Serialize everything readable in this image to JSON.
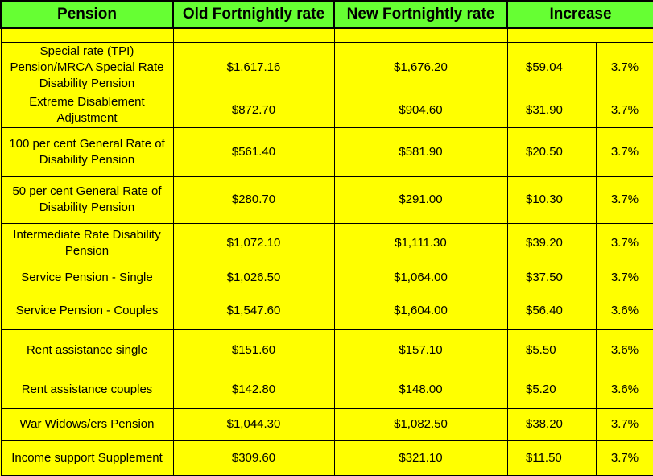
{
  "header": {
    "pension": "Pension",
    "old_rate": "Old Fortnightly rate",
    "new_rate": "New Fortnightly rate",
    "increase": "Increase"
  },
  "rows": [
    {
      "name": "Special rate (TPI) Pension/MRCA Special Rate Disability Pension",
      "old": "$1,617.16",
      "new": "$1,676.20",
      "increase": "$59.04",
      "percent": "3.7%"
    },
    {
      "name": "Extreme Disablement Adjustment",
      "old": "$872.70",
      "new": "$904.60",
      "increase": "$31.90",
      "percent": "3.7%"
    },
    {
      "name": "100 per cent General Rate of Disability Pension",
      "old": "$561.40",
      "new": "$581.90",
      "increase": "$20.50",
      "percent": "3.7%"
    },
    {
      "name": "50 per cent General Rate of Disability Pension",
      "old": "$280.70",
      "new": "$291.00",
      "increase": "$10.30",
      "percent": "3.7%"
    },
    {
      "name": "Intermediate Rate Disability Pension",
      "old": "$1,072.10",
      "new": "$1,111.30",
      "increase": "$39.20",
      "percent": "3.7%"
    },
    {
      "name": "Service Pension - Single",
      "old": "$1,026.50",
      "new": "$1,064.00",
      "increase": "$37.50",
      "percent": "3.7%"
    },
    {
      "name": "Service Pension - Couples",
      "old": "$1,547.60",
      "new": "$1,604.00",
      "increase": "$56.40",
      "percent": "3.6%"
    },
    {
      "name": "Rent assistance single",
      "old": "$151.60",
      "new": "$157.10",
      "increase": "$5.50",
      "percent": "3.6%"
    },
    {
      "name": "Rent assistance couples",
      "old": "$142.80",
      "new": "$148.00",
      "increase": "$5.20",
      "percent": "3.6%"
    },
    {
      "name": "War Widows/ers Pension",
      "old": "$1,044.30",
      "new": "$1,082.50",
      "increase": "$38.20",
      "percent": "3.7%"
    },
    {
      "name": "Income support Supplement",
      "old": "$309.60",
      "new": "$321.10",
      "increase": "$11.50",
      "percent": "3.7%"
    }
  ],
  "colors": {
    "header_bg": "#66ff33",
    "body_bg": "#ffff00",
    "border": "#000000"
  }
}
